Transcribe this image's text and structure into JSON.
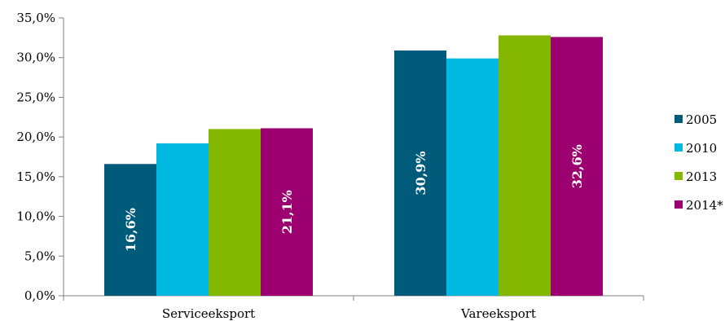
{
  "chart_data": {
    "type": "bar",
    "categories": [
      "Serviceeksport",
      "Vareeksport"
    ],
    "series": [
      {
        "name": "2005",
        "color": "#005b7a",
        "values": [
          16.6,
          30.9
        ],
        "labels": [
          "16,6%",
          "30,9%"
        ]
      },
      {
        "name": "2010",
        "color": "#00b8e0",
        "values": [
          19.2,
          29.9
        ],
        "labels": [
          "",
          ""
        ]
      },
      {
        "name": "2013",
        "color": "#84b800",
        "values": [
          21.0,
          32.8
        ],
        "labels": [
          "",
          ""
        ]
      },
      {
        "name": "2014*",
        "color": "#9c0070",
        "values": [
          21.1,
          32.6
        ],
        "labels": [
          "21,1%",
          "32,6%"
        ]
      }
    ],
    "y_ticks": [
      "0,0%",
      "5,0%",
      "10,0%",
      "15,0%",
      "20,0%",
      "25,0%",
      "30,0%",
      "35,0%"
    ],
    "ylim": [
      0,
      35
    ],
    "grid": false,
    "legend": "right"
  }
}
